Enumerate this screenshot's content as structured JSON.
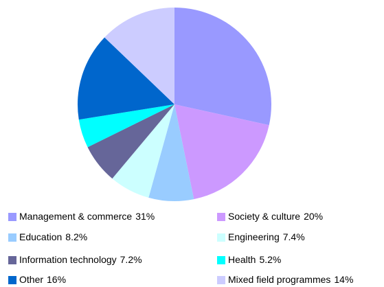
{
  "chart_data": {
    "type": "pie",
    "categories": [
      "Management & commerce",
      "Society & culture",
      "Education",
      "Engineering",
      "Information technology",
      "Health",
      "Other",
      "Mixed field programmes"
    ],
    "values": [
      31,
      20,
      8.2,
      7.4,
      7.2,
      5.2,
      16,
      14
    ],
    "value_labels": [
      "31%",
      "20%",
      "8.2%",
      "7.4%",
      "7.2%",
      "5.2%",
      "16%",
      "14%"
    ],
    "colors": [
      "#9999ff",
      "#cc99ff",
      "#99ccff",
      "#ccffff",
      "#666699",
      "#00ffff",
      "#0066cc",
      "#ccccff"
    ]
  }
}
